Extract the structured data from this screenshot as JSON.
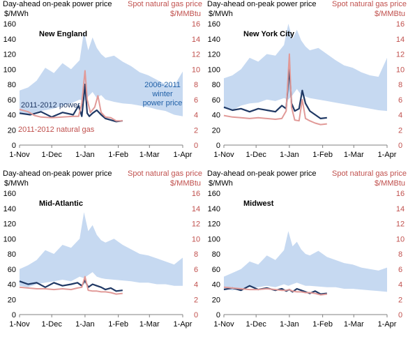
{
  "chart_data": [
    {
      "type": "line",
      "region": "New England",
      "title_left": "Day-ahead on-peak power price",
      "title_right": "Spot natural gas price",
      "unit_left": "$/MWh",
      "unit_right": "$/MMBtu",
      "x_ticks": [
        "1-Nov",
        "1-Dec",
        "1-Jan",
        "1-Feb",
        "1-Mar",
        "1-Apr"
      ],
      "y_left": {
        "min": 0,
        "max": 160,
        "ticks": [
          0,
          20,
          40,
          60,
          80,
          100,
          120,
          140,
          160
        ]
      },
      "y_right": {
        "min": 0,
        "max": 16,
        "ticks": [
          0,
          2,
          4,
          6,
          8,
          10,
          12,
          14,
          16
        ]
      },
      "annotations": [
        {
          "text": "2006-2011",
          "color": "#1f5fa6"
        },
        {
          "text": "winter",
          "color": "#1f5fa6"
        },
        {
          "text": "power price",
          "color": "#1f5fa6"
        },
        {
          "text": "2011-2012 power",
          "color": "#1f3864"
        },
        {
          "text": "2011-2012 natural gas",
          "color": "#c0504d"
        }
      ],
      "series": [
        {
          "name": "2006-2011 winter power price",
          "kind": "band",
          "color": "#c6d9f1",
          "x": [
            0,
            8,
            16,
            24,
            32,
            40,
            48,
            56,
            60,
            64,
            68,
            72,
            76,
            80,
            88,
            96,
            104,
            112,
            120,
            128,
            136,
            144,
            152
          ],
          "low": [
            42,
            40,
            44,
            46,
            48,
            52,
            55,
            60,
            58,
            64,
            70,
            62,
            66,
            60,
            57,
            55,
            54,
            52,
            50,
            47,
            45,
            40,
            38
          ],
          "high": [
            72,
            76,
            85,
            102,
            95,
            108,
            100,
            112,
            150,
            125,
            142,
            128,
            120,
            115,
            118,
            110,
            104,
            96,
            92,
            86,
            80,
            78,
            97
          ]
        },
        {
          "name": "2011-2012 power",
          "kind": "line",
          "axis": "left",
          "color": "#1f3864",
          "x": [
            0,
            10,
            20,
            30,
            40,
            50,
            55,
            58,
            61,
            63,
            65,
            68,
            72,
            76,
            80,
            85,
            90,
            96
          ],
          "y": [
            42,
            40,
            44,
            37,
            43,
            40,
            52,
            38,
            80,
            42,
            38,
            42,
            46,
            40,
            35,
            33,
            31,
            32
          ]
        },
        {
          "name": "2011-2012 natural gas",
          "kind": "line",
          "axis": "right",
          "color": "#e19a98",
          "x": [
            0,
            8,
            14,
            20,
            30,
            40,
            50,
            55,
            58,
            61,
            63,
            66,
            70,
            73,
            76,
            80,
            85,
            90,
            96
          ],
          "y": [
            4.7,
            4.4,
            3.9,
            3.7,
            3.6,
            3.7,
            3.8,
            3.8,
            5.5,
            9.8,
            6.0,
            4.3,
            5.0,
            6.5,
            4.3,
            3.7,
            3.6,
            3.2,
            3.2
          ]
        }
      ]
    },
    {
      "type": "line",
      "region": "New York City",
      "title_left": "Day-ahead on-peak power price",
      "title_right": "Spot natural gas price",
      "unit_left": "$/MWh",
      "unit_right": "$/MMBtu",
      "x_ticks": [
        "1-Nov",
        "1-Dec",
        "1-Jan",
        "1-Feb",
        "1-Mar",
        "1-Apr"
      ],
      "y_left": {
        "min": 0,
        "max": 160,
        "ticks": [
          0,
          20,
          40,
          60,
          80,
          100,
          120,
          140,
          160
        ]
      },
      "y_right": {
        "min": 0,
        "max": 16,
        "ticks": [
          0,
          2,
          4,
          6,
          8,
          10,
          12,
          14,
          16
        ]
      },
      "annotations": [],
      "series": [
        {
          "name": "2006-2011 winter power price",
          "kind": "band",
          "color": "#c6d9f1",
          "x": [
            0,
            8,
            16,
            24,
            32,
            40,
            48,
            56,
            60,
            64,
            68,
            72,
            76,
            80,
            88,
            96,
            104,
            112,
            120,
            128,
            136,
            144,
            152
          ],
          "low": [
            48,
            46,
            52,
            55,
            56,
            60,
            58,
            62,
            60,
            66,
            74,
            66,
            64,
            62,
            60,
            58,
            56,
            54,
            52,
            50,
            48,
            46,
            45
          ],
          "high": [
            88,
            92,
            100,
            115,
            110,
            120,
            118,
            132,
            160,
            140,
            152,
            138,
            130,
            125,
            128,
            120,
            112,
            105,
            102,
            96,
            92,
            90,
            115
          ]
        },
        {
          "name": "2011-2012 power",
          "kind": "line",
          "axis": "left",
          "color": "#1f3864",
          "x": [
            0,
            8,
            16,
            24,
            32,
            40,
            48,
            54,
            58,
            61,
            63,
            66,
            70,
            73,
            76,
            80,
            85,
            90,
            96
          ],
          "y": [
            50,
            46,
            48,
            44,
            48,
            46,
            44,
            52,
            48,
            102,
            55,
            45,
            48,
            72,
            55,
            45,
            40,
            35,
            36
          ]
        },
        {
          "name": "2011-2012 natural gas",
          "kind": "line",
          "axis": "right",
          "color": "#e19a98",
          "x": [
            0,
            8,
            16,
            24,
            32,
            40,
            48,
            54,
            58,
            61,
            63,
            66,
            70,
            73,
            76,
            80,
            85,
            90,
            96
          ],
          "y": [
            3.9,
            3.7,
            3.6,
            3.5,
            3.6,
            3.5,
            3.4,
            3.5,
            4.5,
            12.0,
            5.0,
            3.3,
            3.2,
            6.0,
            3.5,
            3.2,
            2.9,
            2.7,
            2.8
          ]
        }
      ]
    },
    {
      "type": "line",
      "region": "Mid-Atlantic",
      "title_left": "Day-ahead on-peak power price",
      "title_right": "Spot natural gas price",
      "unit_left": "$/MWh",
      "unit_right": "$/MMBtu",
      "x_ticks": [
        "1-Nov",
        "1-Dec",
        "1-Jan",
        "1-Feb",
        "1-Mar",
        "1-Apr"
      ],
      "y_left": {
        "min": 0,
        "max": 160,
        "ticks": [
          0,
          20,
          40,
          60,
          80,
          100,
          120,
          140,
          160
        ]
      },
      "y_right": {
        "min": 0,
        "max": 16,
        "ticks": [
          0,
          2,
          4,
          6,
          8,
          10,
          12,
          14,
          16
        ]
      },
      "annotations": [],
      "series": [
        {
          "name": "2006-2011 winter power price",
          "kind": "band",
          "color": "#c6d9f1",
          "x": [
            0,
            8,
            16,
            24,
            32,
            40,
            48,
            56,
            60,
            64,
            68,
            72,
            76,
            80,
            88,
            96,
            104,
            112,
            120,
            128,
            136,
            144,
            152
          ],
          "low": [
            38,
            36,
            40,
            42,
            44,
            46,
            44,
            50,
            48,
            52,
            56,
            50,
            48,
            47,
            46,
            45,
            44,
            42,
            42,
            40,
            40,
            38,
            38
          ],
          "high": [
            60,
            65,
            72,
            85,
            80,
            92,
            88,
            100,
            135,
            110,
            118,
            105,
            98,
            95,
            100,
            92,
            86,
            80,
            78,
            74,
            70,
            66,
            75
          ]
        },
        {
          "name": "2011-2012 power",
          "kind": "line",
          "axis": "left",
          "color": "#1f3864",
          "x": [
            0,
            8,
            16,
            24,
            32,
            40,
            48,
            54,
            58,
            61,
            64,
            68,
            72,
            76,
            80,
            85,
            90,
            96
          ],
          "y": [
            44,
            40,
            42,
            36,
            42,
            38,
            40,
            42,
            38,
            45,
            36,
            40,
            38,
            36,
            33,
            35,
            31,
            32
          ]
        },
        {
          "name": "2011-2012 natural gas",
          "kind": "line",
          "axis": "right",
          "color": "#e19a98",
          "x": [
            0,
            8,
            16,
            24,
            32,
            40,
            48,
            54,
            58,
            61,
            64,
            68,
            72,
            76,
            80,
            85,
            90,
            96
          ],
          "y": [
            3.6,
            3.5,
            3.4,
            3.4,
            3.3,
            3.4,
            3.3,
            3.5,
            3.6,
            5.0,
            3.2,
            3.1,
            3.1,
            3.0,
            3.0,
            2.9,
            2.7,
            2.8
          ]
        }
      ]
    },
    {
      "type": "line",
      "region": "Midwest",
      "title_left": "Day-ahead on-peak power price",
      "title_right": "Spot natural gas price",
      "unit_left": "$/MWh",
      "unit_right": "$/MMBtu",
      "x_ticks": [
        "1-Nov",
        "1-Dec",
        "1-Jan",
        "1-Feb",
        "1-Mar",
        "1-Apr"
      ],
      "y_left": {
        "min": 0,
        "max": 160,
        "ticks": [
          0,
          20,
          40,
          60,
          80,
          100,
          120,
          140,
          160
        ]
      },
      "y_right": {
        "min": 0,
        "max": 16,
        "ticks": [
          0,
          2,
          4,
          6,
          8,
          10,
          12,
          14,
          16
        ]
      },
      "annotations": [],
      "series": [
        {
          "name": "2006-2011 winter power price",
          "kind": "band",
          "color": "#c6d9f1",
          "x": [
            0,
            8,
            16,
            24,
            32,
            40,
            48,
            56,
            60,
            64,
            68,
            72,
            76,
            80,
            88,
            96,
            104,
            112,
            120,
            128,
            136,
            144,
            152
          ],
          "low": [
            34,
            32,
            34,
            36,
            36,
            38,
            36,
            40,
            38,
            40,
            42,
            40,
            38,
            38,
            37,
            36,
            36,
            34,
            34,
            33,
            32,
            31,
            30
          ],
          "high": [
            50,
            55,
            60,
            70,
            66,
            78,
            72,
            85,
            110,
            90,
            96,
            86,
            80,
            78,
            84,
            76,
            72,
            68,
            66,
            62,
            60,
            58,
            62
          ]
        },
        {
          "name": "2011-2012 power",
          "kind": "line",
          "axis": "left",
          "color": "#1f3864",
          "x": [
            0,
            8,
            16,
            24,
            32,
            40,
            48,
            54,
            58,
            61,
            64,
            68,
            72,
            76,
            80,
            85,
            90,
            96
          ],
          "y": [
            33,
            35,
            32,
            38,
            33,
            35,
            32,
            34,
            31,
            33,
            30,
            34,
            32,
            30,
            28,
            31,
            27,
            28
          ]
        },
        {
          "name": "2011-2012 natural gas",
          "kind": "line",
          "axis": "right",
          "color": "#e19a98",
          "x": [
            0,
            8,
            16,
            24,
            32,
            40,
            48,
            54,
            58,
            61,
            64,
            68,
            72,
            76,
            80,
            85,
            90,
            96
          ],
          "y": [
            3.6,
            3.5,
            3.4,
            3.3,
            3.3,
            3.4,
            3.3,
            3.2,
            3.2,
            3.3,
            3.1,
            3.0,
            3.0,
            2.9,
            2.9,
            2.8,
            2.6,
            2.7
          ]
        }
      ]
    }
  ]
}
